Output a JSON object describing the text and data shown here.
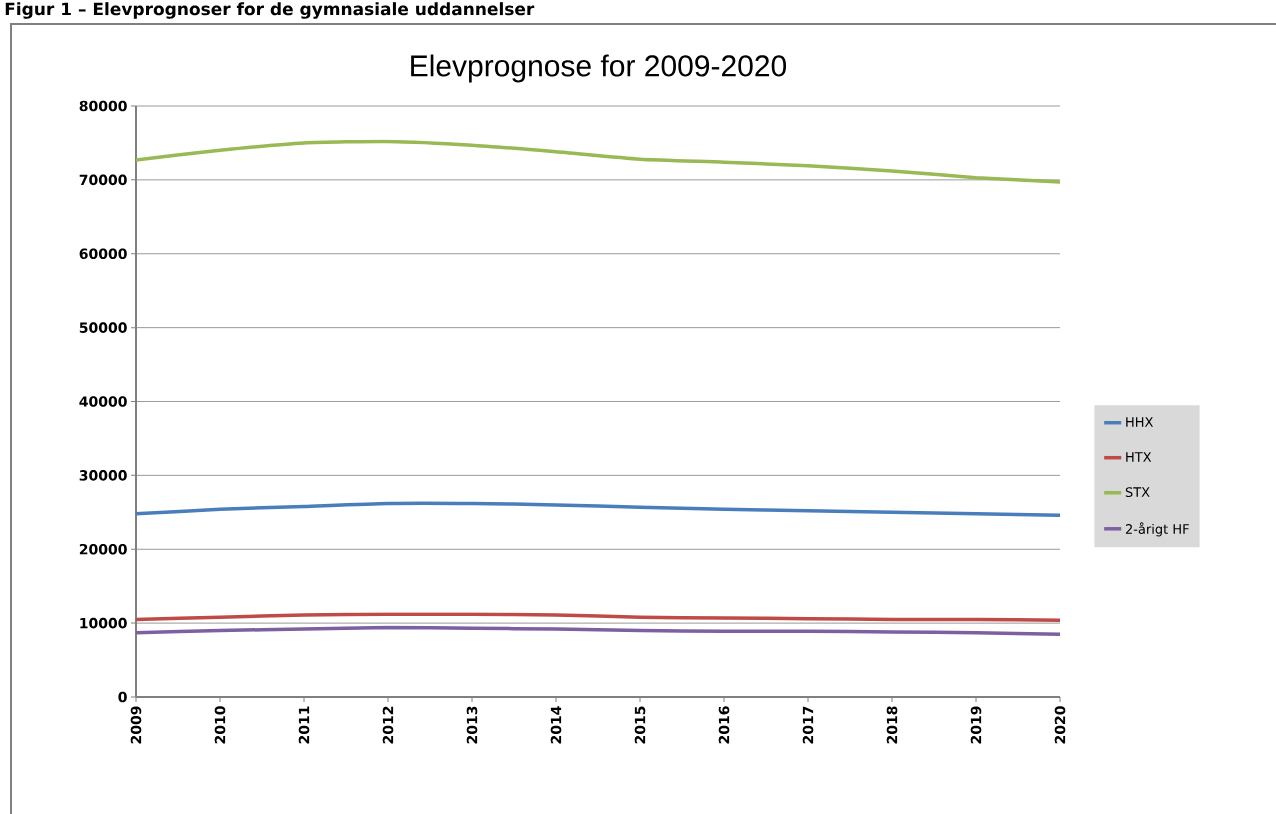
{
  "chart_data": {
    "type": "line",
    "title": "Elevprognose for 2009-2020",
    "annotations": [
      "Figur 1 – Elevprognoser for de gymnasiale uddannelser"
    ],
    "categories": [
      "2009",
      "2010",
      "2011",
      "2012",
      "2013",
      "2014",
      "2015",
      "2016",
      "2017",
      "2018",
      "2019",
      "2020"
    ],
    "series": [
      {
        "name": "HHX",
        "color": "#4a7ebb",
        "values": [
          24800,
          25400,
          25800,
          26200,
          26200,
          26000,
          25700,
          25400,
          25200,
          25000,
          24800,
          24600
        ]
      },
      {
        "name": "HTX",
        "color": "#be4b48",
        "values": [
          10500,
          10800,
          11100,
          11200,
          11200,
          11100,
          10800,
          10700,
          10600,
          10500,
          10500,
          10400
        ]
      },
      {
        "name": "STX",
        "color": "#98b954",
        "values": [
          72700,
          74000,
          75000,
          75200,
          74700,
          73800,
          72800,
          72400,
          71900,
          71200,
          70300,
          69700
        ]
      },
      {
        "name": "2-årigt HF",
        "color": "#7d60a0",
        "values": [
          8700,
          9000,
          9200,
          9400,
          9300,
          9200,
          9000,
          8900,
          8900,
          8800,
          8700,
          8500
        ]
      }
    ],
    "ylim": [
      0,
      80000
    ],
    "yticks": [
      0,
      10000,
      20000,
      30000,
      40000,
      50000,
      60000,
      70000,
      80000
    ],
    "grid": "y",
    "legend": "right",
    "marker": "none",
    "line_style": "solid"
  }
}
